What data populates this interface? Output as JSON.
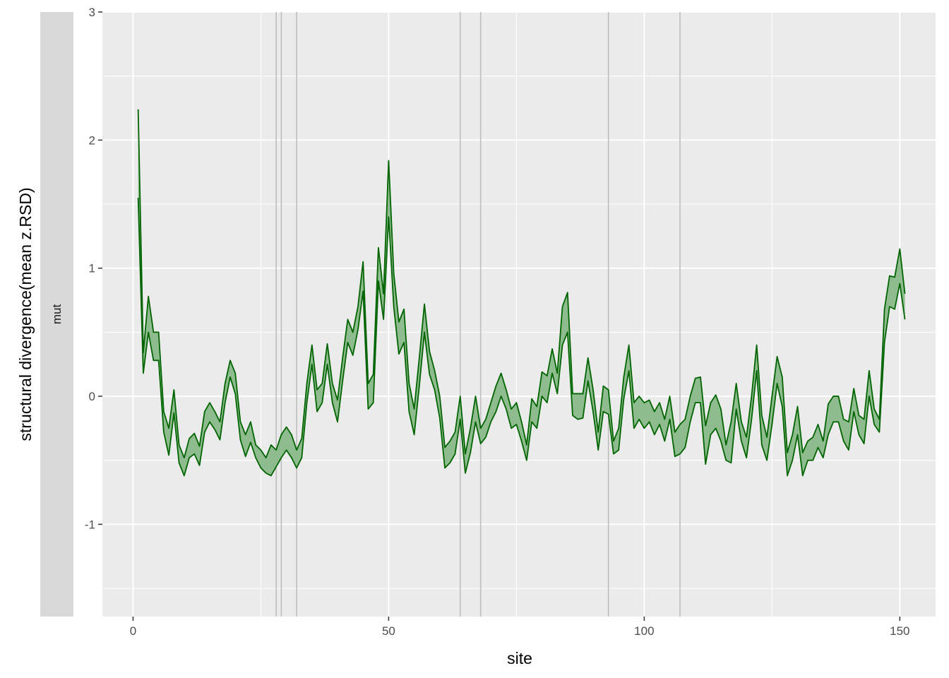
{
  "chart_data": {
    "type": "area",
    "title": "",
    "xlabel": "site",
    "ylabel": "structural divergence(mean z.RSD)",
    "facet_label": "mut",
    "xlim": [
      -6,
      157
    ],
    "ylim": [
      -1.72,
      3.0
    ],
    "x_ticks": [
      0,
      50,
      100,
      150
    ],
    "y_ticks": [
      -1,
      0,
      1,
      2,
      3
    ],
    "grid": true,
    "legend": "none",
    "colors": {
      "panel": "#EBEBEB",
      "grid": "#FFFFFF",
      "strip": "#D9D9D9",
      "band_fill": "#8FBC8F",
      "band_line": "#006400",
      "vlines": "#BEBEBE"
    },
    "vlines": [
      28,
      29,
      32,
      64,
      68,
      93,
      107
    ],
    "series": [
      {
        "x": [
          1,
          2,
          3,
          4,
          5,
          6,
          7,
          8,
          9,
          10,
          11,
          12,
          13,
          14,
          15,
          16,
          17,
          18,
          19,
          20,
          21,
          22,
          23,
          24,
          25,
          26,
          27,
          28,
          29,
          30,
          31,
          32,
          33,
          34,
          35,
          36,
          37,
          38,
          39,
          40,
          41,
          42,
          43,
          44,
          45,
          46,
          47,
          48,
          49,
          50,
          51,
          52,
          53,
          54,
          55,
          56,
          57,
          58,
          59,
          60,
          61,
          62,
          63,
          64,
          65,
          66,
          67,
          68,
          69,
          70,
          71,
          72,
          73,
          74,
          75,
          76,
          77,
          78,
          79,
          80,
          81,
          82,
          83,
          84,
          85,
          86,
          87,
          88,
          89,
          90,
          91,
          92,
          93,
          94,
          95,
          96,
          97,
          98,
          99,
          100,
          101,
          102,
          103,
          104,
          105,
          106,
          107,
          108,
          109,
          110,
          111,
          112,
          113,
          114,
          115,
          116,
          117,
          118,
          119,
          120,
          121,
          122,
          123,
          124,
          125,
          126,
          127,
          128,
          129,
          130,
          131,
          132,
          133,
          134,
          135,
          136,
          137,
          138,
          139,
          140,
          141,
          142,
          143,
          144,
          145,
          146,
          147,
          148,
          149,
          150,
          151
        ],
        "upper": [
          2.24,
          0.34,
          0.78,
          0.5,
          0.5,
          -0.12,
          -0.25,
          0.05,
          -0.38,
          -0.48,
          -0.33,
          -0.29,
          -0.39,
          -0.12,
          -0.05,
          -0.12,
          -0.2,
          0.1,
          0.28,
          0.18,
          -0.2,
          -0.3,
          -0.2,
          -0.38,
          -0.42,
          -0.48,
          -0.38,
          -0.42,
          -0.3,
          -0.24,
          -0.3,
          -0.42,
          -0.33,
          0.1,
          0.4,
          0.05,
          0.1,
          0.41,
          0.1,
          -0.03,
          0.3,
          0.6,
          0.5,
          0.7,
          1.05,
          0.1,
          0.17,
          1.16,
          0.8,
          1.84,
          0.96,
          0.58,
          0.68,
          0.1,
          -0.1,
          0.3,
          0.72,
          0.35,
          0.2,
          0.0,
          -0.4,
          -0.35,
          -0.28,
          0.0,
          -0.45,
          -0.25,
          0.0,
          -0.25,
          -0.18,
          -0.05,
          0.08,
          0.18,
          0.05,
          -0.1,
          -0.05,
          -0.2,
          -0.38,
          -0.02,
          -0.08,
          0.19,
          0.16,
          0.37,
          0.18,
          0.7,
          0.81,
          0.02,
          0.02,
          0.02,
          0.3,
          0.05,
          -0.28,
          0.08,
          0.05,
          -0.35,
          -0.25,
          0.15,
          0.4,
          -0.05,
          0.0,
          -0.05,
          -0.03,
          -0.12,
          -0.05,
          -0.18,
          0.0,
          -0.28,
          -0.22,
          -0.18,
          0.0,
          0.14,
          0.15,
          -0.23,
          -0.05,
          0.01,
          -0.1,
          -0.38,
          -0.2,
          0.1,
          -0.2,
          -0.32,
          0.0,
          0.4,
          -0.15,
          -0.32,
          0.0,
          0.31,
          0.15,
          -0.44,
          -0.3,
          -0.08,
          -0.44,
          -0.35,
          -0.32,
          -0.22,
          -0.35,
          -0.06,
          0.0,
          0.0,
          -0.18,
          -0.2,
          0.06,
          -0.15,
          -0.18,
          0.2,
          -0.1,
          -0.18,
          0.68,
          0.94,
          0.93,
          1.15,
          0.8
        ]
      },
      {
        "x": [
          1,
          2,
          3,
          4,
          5,
          6,
          7,
          8,
          9,
          10,
          11,
          12,
          13,
          14,
          15,
          16,
          17,
          18,
          19,
          20,
          21,
          22,
          23,
          24,
          25,
          26,
          27,
          28,
          29,
          30,
          31,
          32,
          33,
          34,
          35,
          36,
          37,
          38,
          39,
          40,
          41,
          42,
          43,
          44,
          45,
          46,
          47,
          48,
          49,
          50,
          51,
          52,
          53,
          54,
          55,
          56,
          57,
          58,
          59,
          60,
          61,
          62,
          63,
          64,
          65,
          66,
          67,
          68,
          69,
          70,
          71,
          72,
          73,
          74,
          75,
          76,
          77,
          78,
          79,
          80,
          81,
          82,
          83,
          84,
          85,
          86,
          87,
          88,
          89,
          90,
          91,
          92,
          93,
          94,
          95,
          96,
          97,
          98,
          99,
          100,
          101,
          102,
          103,
          104,
          105,
          106,
          107,
          108,
          109,
          110,
          111,
          112,
          113,
          114,
          115,
          116,
          117,
          118,
          119,
          120,
          121,
          122,
          123,
          124,
          125,
          126,
          127,
          128,
          129,
          130,
          131,
          132,
          133,
          134,
          135,
          136,
          137,
          138,
          139,
          140,
          141,
          142,
          143,
          144,
          145,
          146,
          147,
          148,
          149,
          150,
          151
        ],
        "lower": [
          1.55,
          0.18,
          0.5,
          0.28,
          0.28,
          -0.28,
          -0.46,
          -0.13,
          -0.52,
          -0.62,
          -0.48,
          -0.45,
          -0.54,
          -0.28,
          -0.2,
          -0.26,
          -0.34,
          -0.05,
          0.15,
          0.02,
          -0.34,
          -0.47,
          -0.36,
          -0.48,
          -0.56,
          -0.6,
          -0.62,
          -0.55,
          -0.48,
          -0.42,
          -0.48,
          -0.56,
          -0.48,
          -0.05,
          0.25,
          -0.12,
          -0.05,
          0.25,
          -0.05,
          -0.2,
          0.12,
          0.42,
          0.32,
          0.52,
          0.82,
          -0.1,
          -0.05,
          0.9,
          0.6,
          1.4,
          0.7,
          0.33,
          0.42,
          -0.12,
          -0.3,
          0.08,
          0.5,
          0.17,
          0.05,
          -0.17,
          -0.56,
          -0.52,
          -0.45,
          -0.18,
          -0.6,
          -0.44,
          -0.2,
          -0.37,
          -0.32,
          -0.2,
          -0.12,
          0.0,
          -0.1,
          -0.25,
          -0.22,
          -0.35,
          -0.5,
          -0.2,
          -0.25,
          0.0,
          -0.05,
          0.18,
          0.02,
          0.4,
          0.5,
          -0.15,
          -0.18,
          -0.17,
          0.12,
          -0.12,
          -0.42,
          -0.12,
          -0.14,
          -0.45,
          -0.42,
          -0.02,
          0.2,
          -0.25,
          -0.18,
          -0.25,
          -0.2,
          -0.3,
          -0.22,
          -0.35,
          -0.18,
          -0.47,
          -0.45,
          -0.4,
          -0.2,
          -0.05,
          -0.05,
          -0.53,
          -0.3,
          -0.25,
          -0.35,
          -0.5,
          -0.52,
          -0.1,
          -0.35,
          -0.48,
          -0.18,
          0.2,
          -0.38,
          -0.5,
          -0.22,
          0.1,
          -0.08,
          -0.62,
          -0.5,
          -0.3,
          -0.62,
          -0.5,
          -0.5,
          -0.4,
          -0.48,
          -0.3,
          -0.2,
          -0.2,
          -0.35,
          -0.42,
          -0.12,
          -0.3,
          -0.37,
          0.0,
          -0.22,
          -0.28,
          0.42,
          0.7,
          0.68,
          0.88,
          0.6
        ]
      }
    ]
  }
}
